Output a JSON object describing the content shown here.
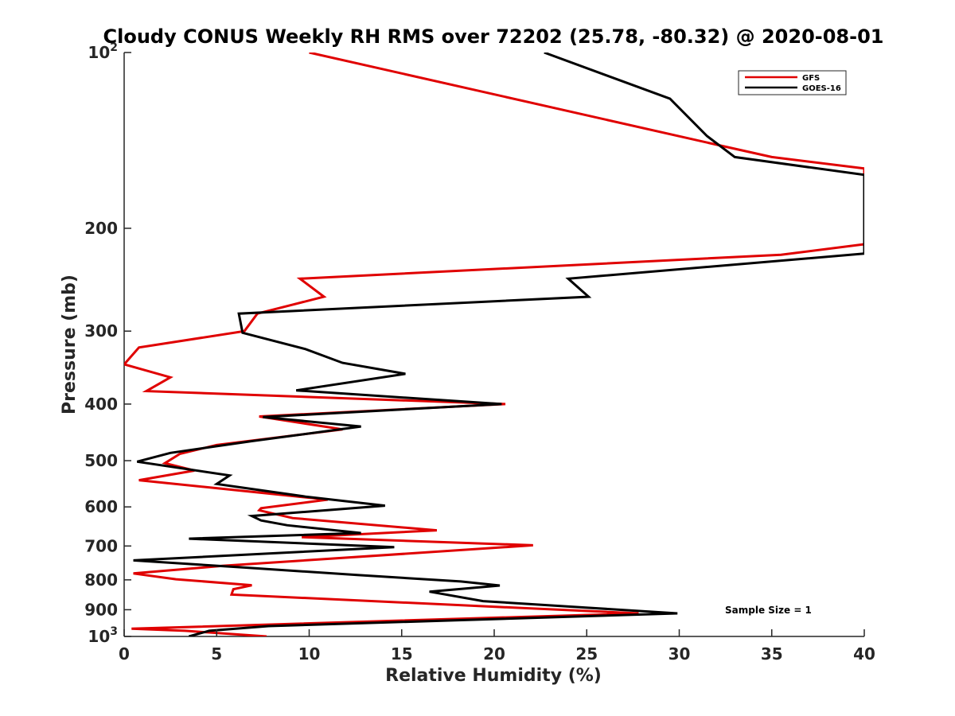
{
  "chart_data": {
    "type": "line",
    "title": "Cloudy CONUS Weekly RH RMS over 72202 (25.78, -80.32) @ 2020-08-01",
    "xlabel": "Relative Humidity (%)",
    "ylabel": "Pressure (mb)",
    "xlim": [
      0,
      40
    ],
    "ylim": [
      100,
      1000
    ],
    "yscale": "log",
    "y_reversed": true,
    "x_ticks": [
      "0",
      "5",
      "10",
      "15",
      "20",
      "25",
      "30",
      "35",
      "40"
    ],
    "y_ticks": [
      {
        "value": 100,
        "label": "10",
        "sup": "2"
      },
      {
        "value": 200,
        "label": "200"
      },
      {
        "value": 300,
        "label": "300"
      },
      {
        "value": 400,
        "label": "400"
      },
      {
        "value": 500,
        "label": "500"
      },
      {
        "value": 600,
        "label": "600"
      },
      {
        "value": 700,
        "label": "700"
      },
      {
        "value": 800,
        "label": "800"
      },
      {
        "value": 900,
        "label": "900"
      },
      {
        "value": 1000,
        "label": "10",
        "sup": "3"
      }
    ],
    "legend_position": "top-right",
    "annotation": "Sample Size = 1",
    "series": [
      {
        "name": "GFS",
        "color": "#e00000",
        "points": [
          [
            10.0,
            100
          ],
          [
            32.5,
            145
          ],
          [
            35.0,
            151
          ],
          [
            40.0,
            158
          ],
          [
            40.0,
            213
          ],
          [
            35.5,
            222
          ],
          [
            9.5,
            244
          ],
          [
            10.8,
            262
          ],
          [
            7.2,
            280
          ],
          [
            6.5,
            300
          ],
          [
            0.8,
            320
          ],
          [
            0.0,
            342
          ],
          [
            2.5,
            360
          ],
          [
            1.2,
            380
          ],
          [
            20.6,
            400
          ],
          [
            7.3,
            420
          ],
          [
            11.8,
            442
          ],
          [
            5.0,
            470
          ],
          [
            3.0,
            487
          ],
          [
            2.2,
            505
          ],
          [
            3.8,
            520
          ],
          [
            0.8,
            540
          ],
          [
            11.0,
            583
          ],
          [
            7.4,
            603
          ],
          [
            7.3,
            608
          ],
          [
            9.1,
            627
          ],
          [
            16.9,
            658
          ],
          [
            9.6,
            676
          ],
          [
            22.1,
            698
          ],
          [
            5.3,
            757
          ],
          [
            0.5,
            780
          ],
          [
            2.8,
            798
          ],
          [
            6.9,
            817
          ],
          [
            5.9,
            830
          ],
          [
            5.8,
            848
          ],
          [
            27.8,
            913
          ],
          [
            0.4,
            970
          ],
          [
            3.3,
            978
          ],
          [
            7.7,
            1000
          ]
        ]
      },
      {
        "name": "GOES-16",
        "color": "#000000",
        "points": [
          [
            22.7,
            100
          ],
          [
            29.5,
            120
          ],
          [
            31.5,
            139
          ],
          [
            33.0,
            151
          ],
          [
            40.0,
            162
          ],
          [
            40.0,
            221
          ],
          [
            24.0,
            244
          ],
          [
            25.1,
            262
          ],
          [
            6.2,
            280
          ],
          [
            6.4,
            302
          ],
          [
            9.8,
            322
          ],
          [
            11.8,
            340
          ],
          [
            15.2,
            355
          ],
          [
            9.3,
            379
          ],
          [
            20.4,
            400
          ],
          [
            7.5,
            421
          ],
          [
            12.8,
            437
          ],
          [
            6.9,
            463
          ],
          [
            2.5,
            485
          ],
          [
            0.7,
            502
          ],
          [
            5.7,
            530
          ],
          [
            5.0,
            548
          ],
          [
            9.8,
            576
          ],
          [
            14.1,
            597
          ],
          [
            6.9,
            622
          ],
          [
            7.4,
            633
          ],
          [
            8.8,
            645
          ],
          [
            12.8,
            665
          ],
          [
            3.5,
            680
          ],
          [
            14.6,
            703
          ],
          [
            0.5,
            741
          ],
          [
            6.5,
            762
          ],
          [
            12.6,
            785
          ],
          [
            18.2,
            805
          ],
          [
            20.3,
            818
          ],
          [
            16.5,
            838
          ],
          [
            19.4,
            870
          ],
          [
            29.9,
            913
          ],
          [
            7.8,
            960
          ],
          [
            4.6,
            978
          ],
          [
            3.5,
            1000
          ]
        ]
      }
    ]
  }
}
